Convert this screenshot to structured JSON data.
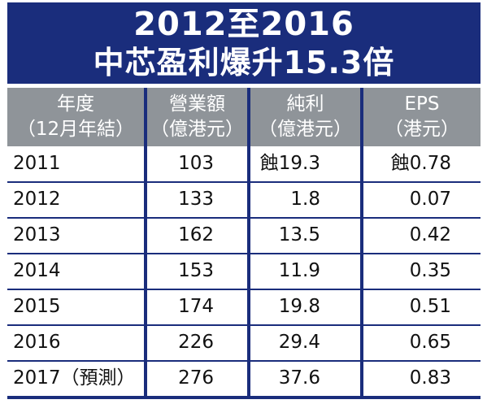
{
  "title": {
    "line1": "2012至2016",
    "line2": "中芯盈利爆升15.3倍"
  },
  "chart_data": {
    "type": "table",
    "columns": [
      {
        "line1": "年度",
        "line2": "（12月年結）"
      },
      {
        "line1": "營業額",
        "line2": "（億港元）"
      },
      {
        "line1": "純利",
        "line2": "（億港元）"
      },
      {
        "line1": "EPS",
        "line2": "（港元）"
      }
    ],
    "rows": [
      {
        "year": "2011",
        "revenue": "103",
        "profit": "蝕19.3",
        "eps": "蝕0.78"
      },
      {
        "year": "2012",
        "revenue": "133",
        "profit": "1.8",
        "eps": "0.07"
      },
      {
        "year": "2013",
        "revenue": "162",
        "profit": "13.5",
        "eps": "0.42"
      },
      {
        "year": "2014",
        "revenue": "153",
        "profit": "11.9",
        "eps": "0.35"
      },
      {
        "year": "2015",
        "revenue": "174",
        "profit": "19.8",
        "eps": "0.51"
      },
      {
        "year": "2016",
        "revenue": "226",
        "profit": "29.4",
        "eps": "0.65"
      },
      {
        "year": "2017（預測）",
        "revenue": "276",
        "profit": "37.6",
        "eps": "0.83"
      }
    ]
  },
  "colors": {
    "title_background": "#1a2d7c",
    "header_background": "#8f9499",
    "rule": "#1a2d7c"
  }
}
